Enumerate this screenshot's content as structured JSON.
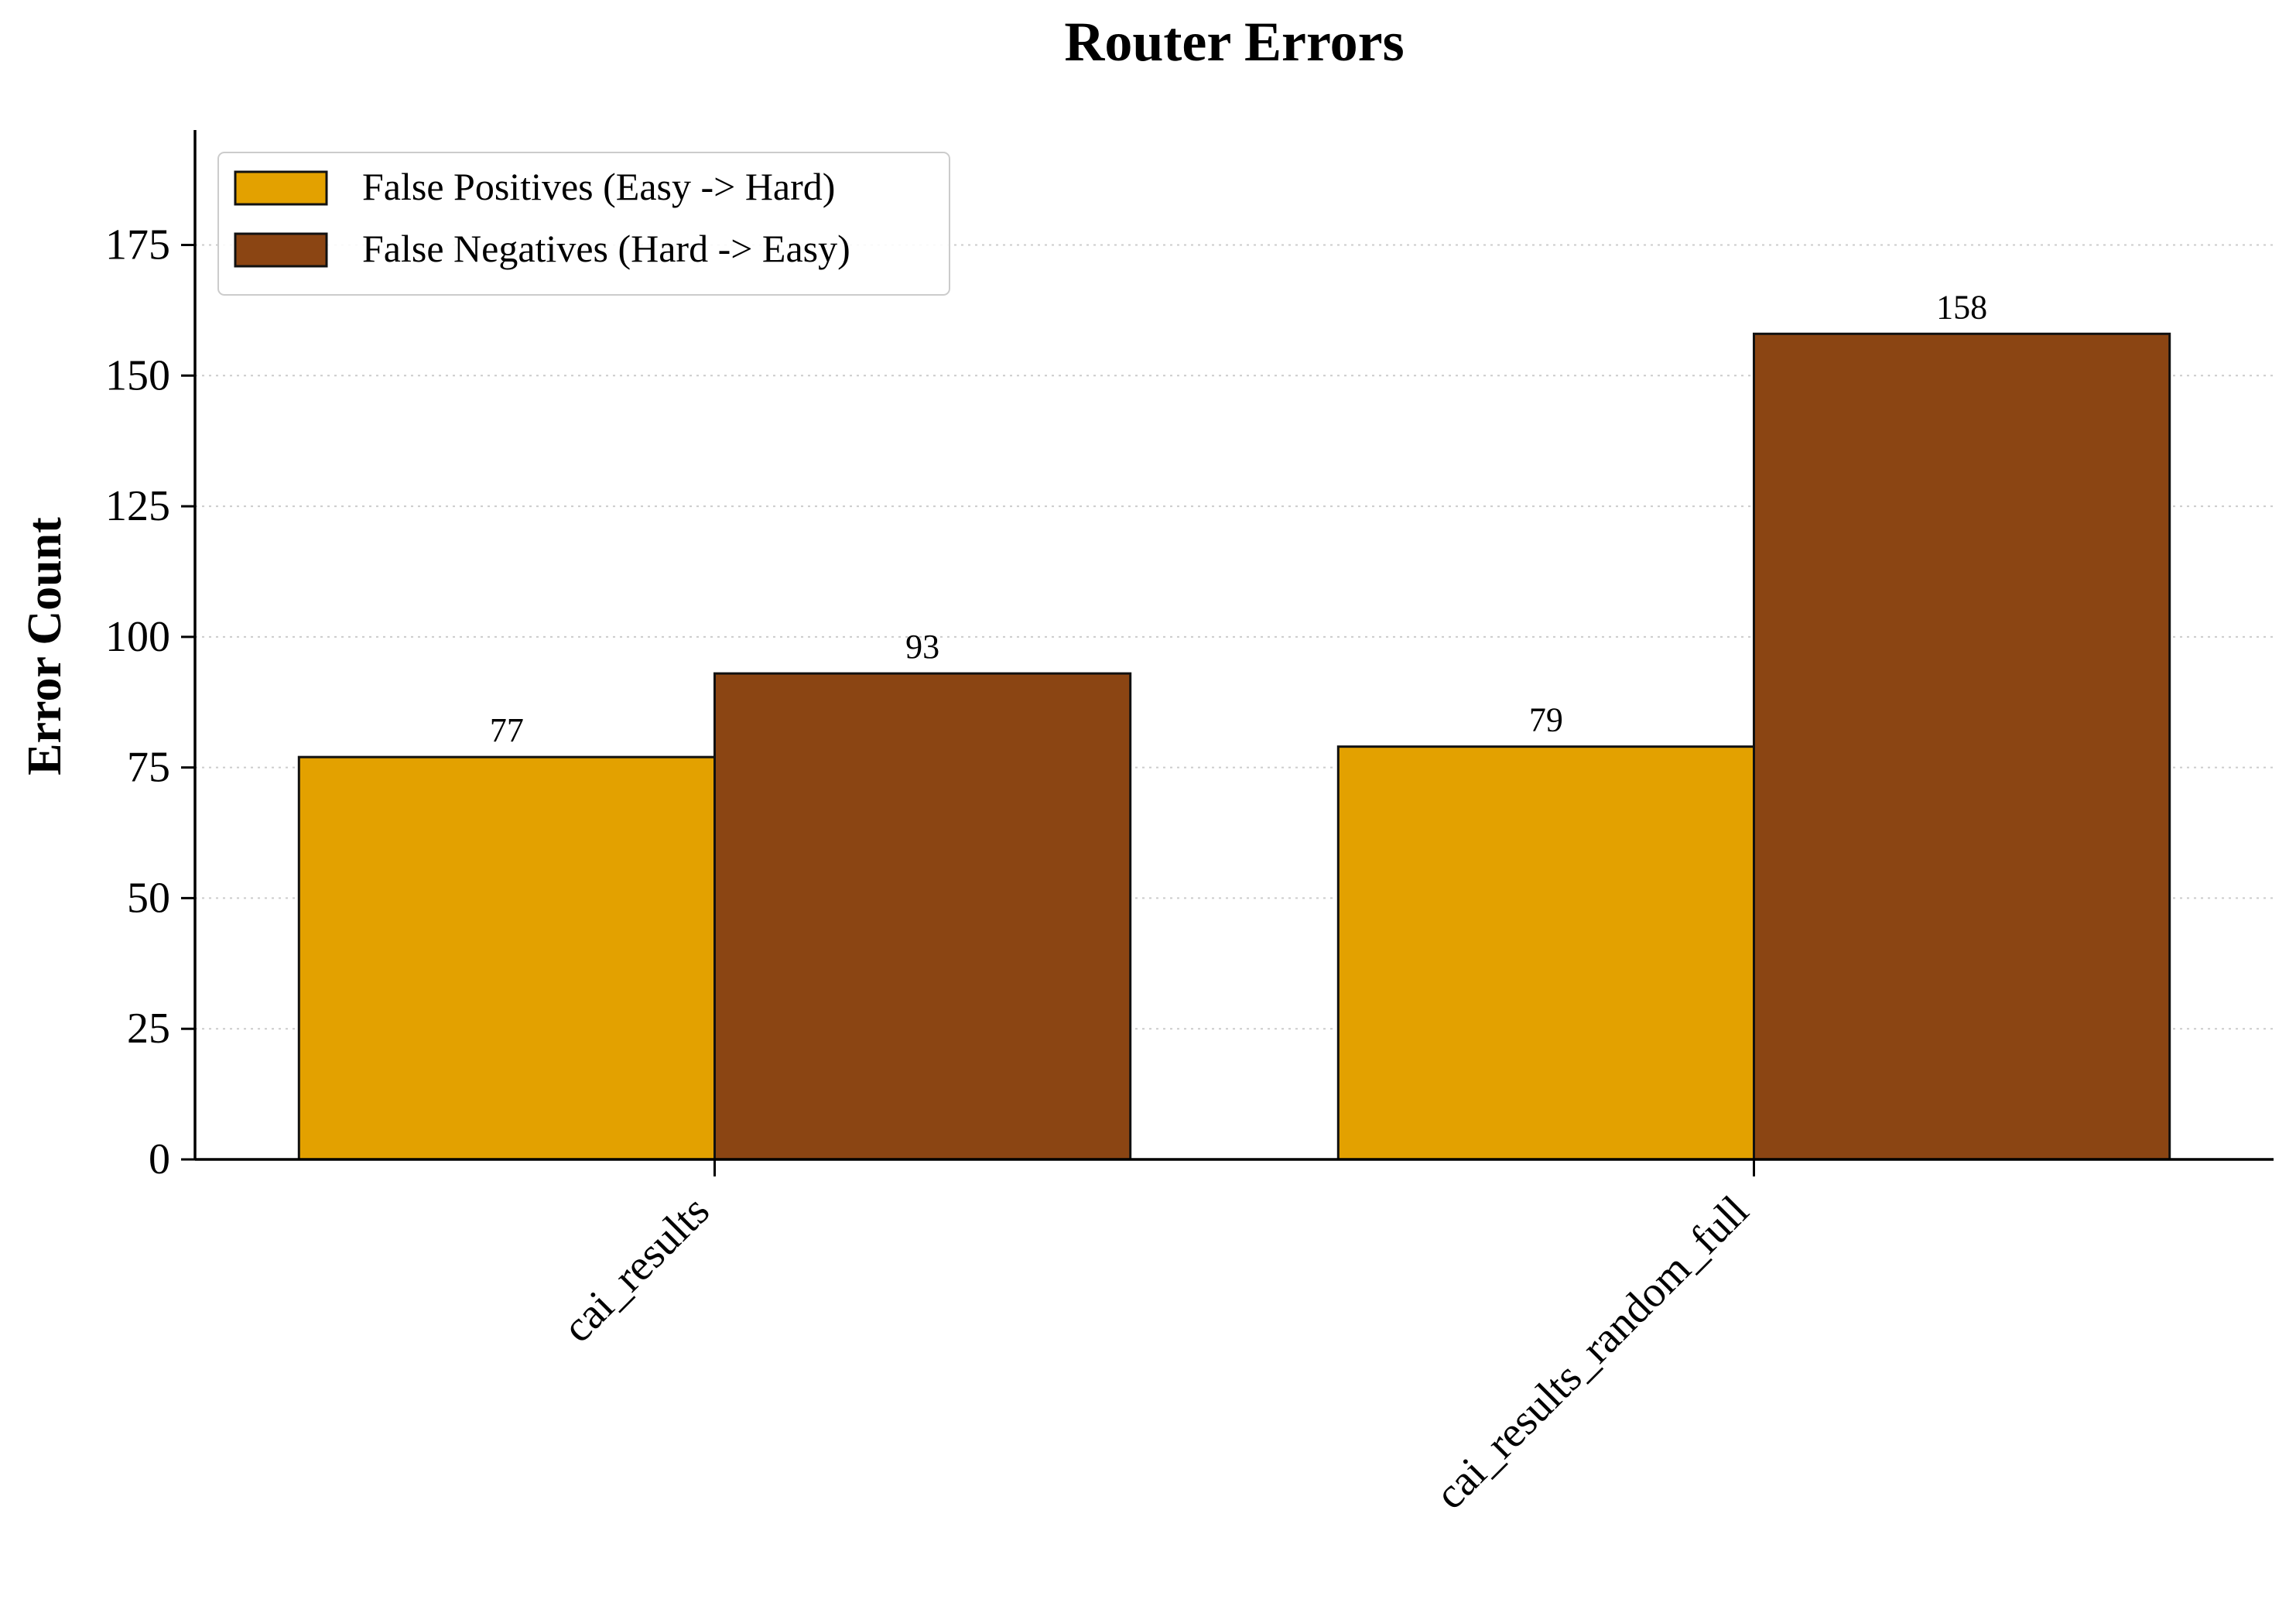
{
  "chart_data": {
    "type": "bar",
    "title": "Router Errors",
    "xlabel": "",
    "ylabel": "Error Count",
    "categories": [
      "cai_results",
      "cai_results_random_full"
    ],
    "series": [
      {
        "name": "False Positives (Easy -> Hard)",
        "color": "#E3A100",
        "values": [
          77,
          79
        ]
      },
      {
        "name": "False Negatives (Hard -> Easy)",
        "color": "#8B4513",
        "values": [
          93,
          158
        ]
      }
    ],
    "ylim": [
      0,
      197
    ],
    "yticks": [
      0,
      25,
      50,
      75,
      100,
      125,
      150,
      175
    ],
    "data_labels": true,
    "grid": {
      "y": true,
      "x": false,
      "style": "dotted"
    },
    "legend": {
      "position": "top-left"
    },
    "xtick_rotation": "45deg"
  }
}
